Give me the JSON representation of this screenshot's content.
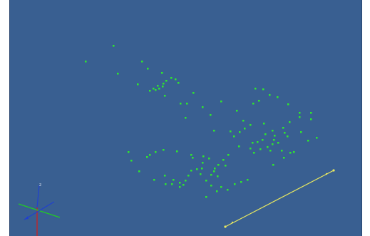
{
  "viewport": {
    "background": "#395f91",
    "point_color": "#2ee62e"
  },
  "axis_triad": {
    "label_z": "z",
    "x_color": "#d02020",
    "y_color": "#22cc22",
    "z_color": "#2040d0"
  },
  "measurement_line": {
    "color": "#e8e860"
  }
}
